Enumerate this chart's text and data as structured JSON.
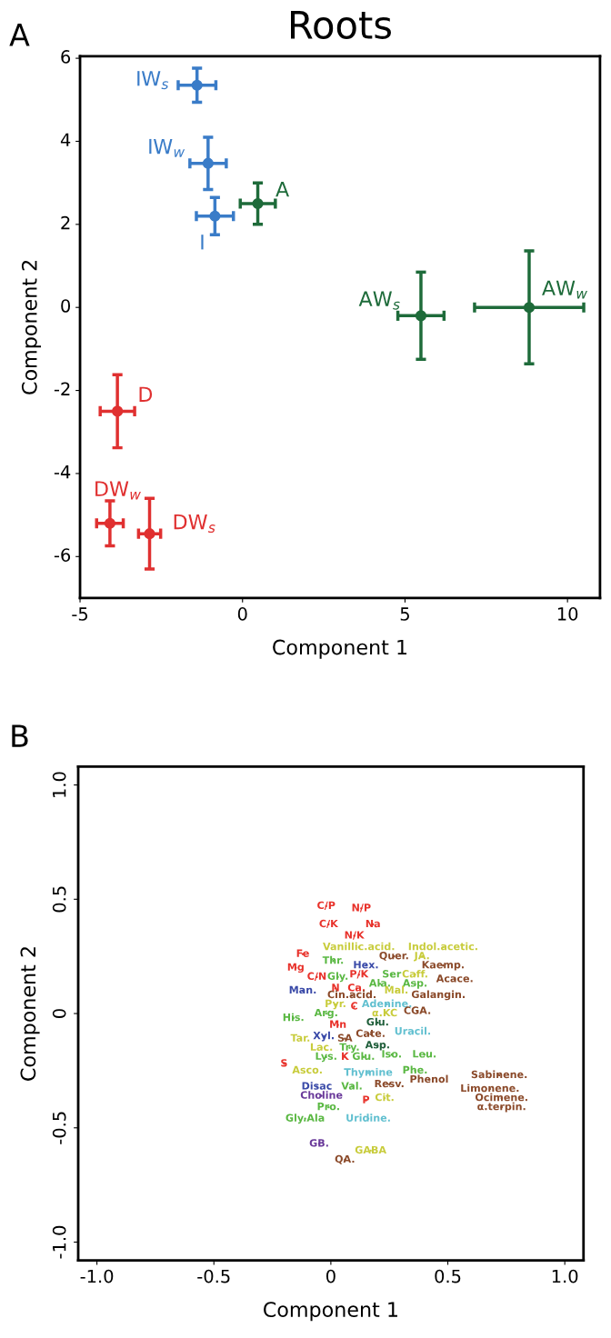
{
  "chart_data": [
    {
      "type": "scatter",
      "title": "Roots",
      "xlabel": "Component 1",
      "ylabel": "Component 2",
      "annotations": [
        "A"
      ],
      "xlim": [
        -5,
        11
      ],
      "ylim": [
        -7,
        6.05
      ],
      "xticks": [
        -5,
        0,
        5,
        10
      ],
      "yticks": [
        -6,
        -4,
        -2,
        0,
        2,
        4,
        6
      ],
      "marker": "circle",
      "grid": false,
      "legend": false,
      "series": [
        {
          "color": "#3a7cc8",
          "x": [
            -1.4,
            -1.06,
            -0.85
          ],
          "values": [
            5.35,
            3.47,
            2.2
          ],
          "xerrors": [
            0.58,
            0.56,
            0.57
          ],
          "errors": [
            0.41,
            0.63,
            0.45
          ],
          "value_labels": [
            "IW$_{s}$",
            "IW$_{w}$",
            "I"
          ]
        },
        {
          "color": "#1e6b3a",
          "x": [
            0.47,
            5.49,
            8.82
          ],
          "values": [
            2.5,
            -0.2,
            0.0
          ],
          "xerrors": [
            0.54,
            0.71,
            1.68
          ],
          "errors": [
            0.5,
            1.05,
            1.36
          ],
          "value_labels": [
            "A",
            "AW$_{s}$",
            "AW$_{w}$"
          ]
        },
        {
          "color": "#e03030",
          "x": [
            -3.85,
            -4.08,
            -2.86
          ],
          "values": [
            -2.5,
            -5.2,
            -5.45
          ],
          "xerrors": [
            0.53,
            0.41,
            0.34
          ],
          "errors": [
            0.88,
            0.54,
            0.85
          ],
          "value_labels": [
            "D",
            "DW$_{w}$",
            "DW$_{s}$"
          ]
        }
      ]
    },
    {
      "type": "scatter",
      "xlabel": "Component 1",
      "ylabel": "Component 2",
      "annotations": [
        "B"
      ],
      "xlim": [
        -1.08,
        1.08
      ],
      "ylim": [
        -1.08,
        1.08
      ],
      "xticks": [
        {
          "value": -1,
          "label": "-1.0"
        },
        -0.5,
        0,
        0.5,
        {
          "value": 1,
          "label": "1.0"
        }
      ],
      "yticks": [
        {
          "value": -1,
          "label": "-1.0"
        },
        -0.5,
        0,
        0.5,
        {
          "value": 1,
          "label": "1.0"
        }
      ],
      "marker": "none",
      "grid": false,
      "legend": false,
      "series": [
        {
          "x": [
            -0.02,
            0.13,
            -0.01,
            0.18,
            0.1,
            0.12,
            0.48,
            -0.12,
            0.27,
            0.39,
            0.01,
            0.48,
            0.15,
            -0.15,
            -0.06,
            0.03,
            0.12,
            0.26,
            0.36,
            0.53,
            0.02,
            0.11,
            0.21,
            0.36,
            -0.12,
            0.09,
            0.28,
            0.46,
            0.02,
            0.1,
            0.24,
            -0.02,
            -0.16,
            0.23,
            0.37,
            0.03,
            0.2,
            0.35,
            -0.13,
            -0.03,
            0.06,
            0.17,
            -0.04,
            0.08,
            0.2,
            -0.02,
            0.06,
            0.14,
            0.26,
            0.4,
            -0.2,
            -0.1,
            0.16,
            0.36,
            0.72,
            0.42,
            0.25,
            -0.06,
            0.09,
            0.68,
            -0.04,
            0.73,
            0.15,
            0.23,
            0.73,
            -0.01,
            -0.11,
            0.16,
            -0.05,
            0.17,
            0.06
          ],
          "values": [
            0.47,
            0.46,
            0.39,
            0.39,
            0.34,
            0.29,
            0.29,
            0.26,
            0.25,
            0.25,
            0.23,
            0.21,
            0.21,
            0.2,
            0.16,
            0.16,
            0.17,
            0.17,
            0.17,
            0.15,
            0.11,
            0.11,
            0.13,
            0.13,
            0.1,
            0.08,
            0.1,
            0.08,
            0.04,
            0.03,
            0.04,
            0.0,
            -0.02,
            0.0,
            0.01,
            -0.05,
            -0.04,
            -0.08,
            -0.11,
            -0.1,
            -0.11,
            -0.09,
            -0.15,
            -0.15,
            -0.14,
            -0.19,
            -0.19,
            -0.19,
            -0.18,
            -0.18,
            -0.22,
            -0.25,
            -0.26,
            -0.25,
            -0.27,
            -0.29,
            -0.31,
            -0.32,
            -0.32,
            -0.33,
            -0.36,
            -0.37,
            -0.38,
            -0.37,
            -0.41,
            -0.41,
            -0.46,
            -0.46,
            -0.57,
            -0.6,
            -0.64
          ],
          "value_labels": [
            "C/P",
            "N/P",
            "C/K",
            "Na",
            "N/K",
            "Vanillic.acid.",
            "Indol.acetic.",
            "Fe",
            "Quer.",
            "JA.",
            "Thr.",
            "Kaemp.",
            "Hex.",
            "Mg",
            "C/N",
            "Gly.",
            "P/K",
            "Ser",
            "Caff.",
            "Acace.",
            "N",
            "Ca.",
            "Ala.",
            "Asp.",
            "Man.",
            "Cin.acid.",
            "Mal.",
            "Galangin.",
            "Pyr.",
            "C",
            "Adenine.",
            "Arg.",
            "His.",
            "α.KC",
            "CGA.",
            "Mn",
            "Glu.",
            "Uracil.",
            "Tar.",
            "Xyl.",
            "SA",
            "Cate.",
            "Lac.",
            "Try.",
            "Asp.",
            "Lys.",
            "K",
            "Glu.",
            "Iso.",
            "Leu.",
            "S",
            "Asco.",
            "Thymine",
            "Phe.",
            "Sabinene.",
            "Phenol",
            "Resv.",
            "Disac",
            "Val.",
            "Limonene.",
            "Choline",
            "Ocimene.",
            "P",
            "Cit.",
            "α.terpin.",
            "Pro.",
            "Gly.Ala",
            "Uridine.",
            "GB.",
            "GABA",
            "QA."
          ],
          "colors": [
            "#e8322b",
            "#e8322b",
            "#e8322b",
            "#e8322b",
            "#e8322b",
            "#c8cc3c",
            "#c8cc3c",
            "#e8322b",
            "#8b4a2a",
            "#c8cc3c",
            "#5ab843",
            "#8b4a2a",
            "#3a4aa8",
            "#e8322b",
            "#e8322b",
            "#5ab843",
            "#e8322b",
            "#5ab843",
            "#c8cc3c",
            "#8b4a2a",
            "#e8322b",
            "#e8322b",
            "#5ab843",
            "#5ab843",
            "#3a4aa8",
            "#8b4a2a",
            "#c8cc3c",
            "#8b4a2a",
            "#c8cc3c",
            "#e8322b",
            "#62c0d0",
            "#5ab843",
            "#5ab843",
            "#c8cc3c",
            "#8b4a2a",
            "#e8322b",
            "#1f5e3a",
            "#62c0d0",
            "#c8cc3c",
            "#3a4aa8",
            "#8b4a2a",
            "#8b4a2a",
            "#c8cc3c",
            "#5ab843",
            "#1f5e3a",
            "#5ab843",
            "#e8322b",
            "#5ab843",
            "#5ab843",
            "#5ab843",
            "#e8322b",
            "#c8cc3c",
            "#62c0d0",
            "#5ab843",
            "#8b4a2a",
            "#8b4a2a",
            "#8b4a2a",
            "#3a4aa8",
            "#5ab843",
            "#8b4a2a",
            "#6a3a9a",
            "#8b4a2a",
            "#e8322b",
            "#c8cc3c",
            "#8b4a2a",
            "#5ab843",
            "#5ab843",
            "#62c0d0",
            "#6a3a9a",
            "#c8cc3c",
            "#8b4a2a"
          ]
        }
      ]
    }
  ]
}
